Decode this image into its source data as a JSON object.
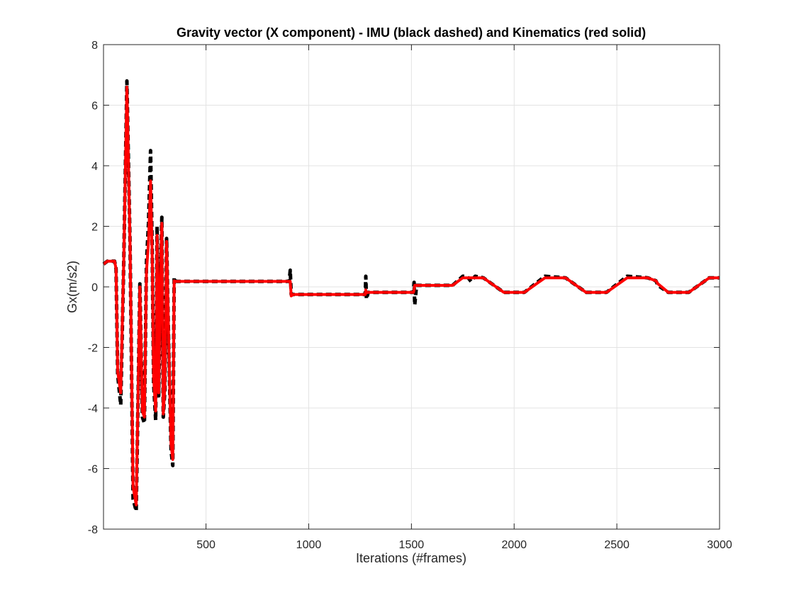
{
  "chart_data": {
    "type": "line",
    "title": "Gravity vector (X component) - IMU (black dashed) and Kinematics (red solid)",
    "xlabel": "Iterations (#frames)",
    "ylabel": "Gx(m/s2)",
    "xlim": [
      1,
      3000
    ],
    "ylim": [
      -8,
      8
    ],
    "xticks": [
      500,
      1000,
      1500,
      2000,
      2500,
      3000
    ],
    "yticks": [
      -8,
      -6,
      -4,
      -2,
      0,
      2,
      4,
      6,
      8
    ],
    "grid": true,
    "legend": "none",
    "series": [
      {
        "color": "#000000",
        "style": "dashed",
        "x": [
          1,
          20,
          55,
          62,
          70,
          85,
          100,
          115,
          130,
          145,
          160,
          165,
          178,
          190,
          200,
          210,
          220,
          230,
          238,
          245,
          255,
          262,
          270,
          278,
          285,
          292,
          300,
          308,
          315,
          322,
          330,
          338,
          345,
          350,
          360,
          500,
          700,
          905,
          910,
          915,
          925,
          1000,
          1200,
          1275,
          1278,
          1281,
          1290,
          1400,
          1510,
          1513,
          1516,
          1525,
          1600,
          1700,
          1750,
          1770,
          1790,
          1810,
          1850,
          1950,
          2050,
          2150,
          2250,
          2350,
          2450,
          2550,
          2650,
          2690,
          2700,
          2750,
          2850,
          2950,
          3000
        ],
        "y": [
          0.75,
          0.85,
          0.85,
          0.6,
          -2.9,
          -3.9,
          1.0,
          6.8,
          1.5,
          -7.0,
          -7.4,
          -5.5,
          0.1,
          -4.3,
          -4.5,
          0.8,
          2.1,
          4.5,
          1.2,
          -3.2,
          -4.4,
          2.0,
          -3.6,
          0.5,
          2.3,
          -4.3,
          -3.4,
          1.6,
          -0.8,
          -3.0,
          -5.4,
          -5.9,
          0.3,
          0.2,
          0.18,
          0.18,
          0.18,
          0.18,
          0.55,
          -0.25,
          -0.25,
          -0.25,
          -0.25,
          -0.25,
          0.35,
          -0.4,
          -0.18,
          -0.18,
          -0.18,
          0.15,
          -0.6,
          0.05,
          0.05,
          0.05,
          0.35,
          0.35,
          0.18,
          0.35,
          0.3,
          -0.18,
          -0.18,
          0.35,
          0.3,
          -0.18,
          -0.18,
          0.35,
          0.3,
          0.2,
          0.05,
          -0.18,
          -0.18,
          0.3,
          0.3
        ]
      },
      {
        "color": "#ff0000",
        "style": "solid",
        "x": [
          1,
          20,
          55,
          62,
          70,
          85,
          100,
          115,
          130,
          145,
          160,
          165,
          178,
          190,
          200,
          210,
          220,
          230,
          238,
          245,
          255,
          262,
          270,
          278,
          285,
          292,
          300,
          308,
          315,
          322,
          330,
          338,
          345,
          350,
          360,
          500,
          700,
          905,
          910,
          915,
          925,
          1000,
          1200,
          1275,
          1278,
          1281,
          1290,
          1400,
          1510,
          1513,
          1516,
          1525,
          1600,
          1700,
          1750,
          1770,
          1790,
          1810,
          1850,
          1950,
          2050,
          2150,
          2250,
          2350,
          2450,
          2550,
          2650,
          2690,
          2700,
          2750,
          2850,
          2950,
          3000
        ],
        "y": [
          0.75,
          0.85,
          0.85,
          0.6,
          -2.8,
          -3.5,
          1.0,
          6.6,
          1.5,
          -6.6,
          -7.2,
          -5.3,
          0.0,
          -4.1,
          -4.3,
          0.5,
          1.5,
          3.5,
          1.0,
          -3.0,
          -4.1,
          1.7,
          -3.5,
          0.4,
          2.1,
          -4.2,
          -3.3,
          1.5,
          -0.7,
          -2.9,
          -5.2,
          -5.7,
          0.2,
          0.18,
          0.18,
          0.18,
          0.18,
          0.18,
          0.18,
          -0.3,
          -0.25,
          -0.25,
          -0.25,
          -0.25,
          -0.1,
          -0.2,
          -0.18,
          -0.18,
          -0.18,
          -0.1,
          0.05,
          0.05,
          0.05,
          0.05,
          0.3,
          0.3,
          0.3,
          0.3,
          0.3,
          -0.18,
          -0.18,
          0.3,
          0.3,
          -0.18,
          -0.18,
          0.3,
          0.3,
          0.2,
          0.1,
          -0.18,
          -0.18,
          0.3,
          0.3
        ]
      }
    ]
  }
}
